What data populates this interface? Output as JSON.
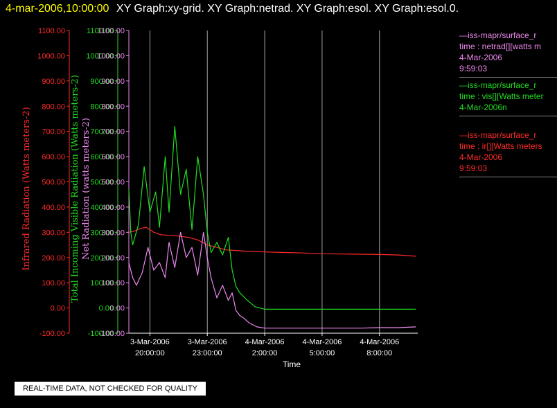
{
  "header": {
    "timestamp": "4-mar-2006,10:00:00",
    "titles": "XY Graph:xy-grid.  XY Graph:netrad.  XY Graph:esol.  XY Graph:esol.0."
  },
  "colors": {
    "red": "#ff2a2a",
    "green": "#22dd22",
    "violet": "#ee88ee",
    "grid": "#cccccc",
    "white": "#ffffff"
  },
  "legend": [
    {
      "lines": [
        "—iss-mapr/surface_r",
        "time : netrad[][watts m",
        "4-Mar-2006",
        "9:59:03"
      ],
      "color": "#ee88ee"
    },
    {
      "lines": [
        "—iss-mapr/surface_r",
        "time : vis[][Watts meter",
        "4-Mar-2006n"
      ],
      "color": "#22dd22"
    },
    {
      "lines": [
        "—iss-mapr/surface_r",
        "time : ir[][Watts meters",
        "4-Mar-2006",
        "9:59:03"
      ],
      "color": "#ff2a2a"
    }
  ],
  "quality_note": "REAL-TIME DATA, NOT CHECKED FOR QUALITY",
  "chart_data": {
    "type": "line",
    "xlabel": "Time",
    "x_ticks": [
      {
        "hours": 0,
        "label1": "3-Mar-2006",
        "label2": "20:00:00"
      },
      {
        "hours": 3,
        "label1": "3-Mar-2006",
        "label2": "23:00:00"
      },
      {
        "hours": 6,
        "label1": "4-Mar-2006",
        "label2": "2:00:00"
      },
      {
        "hours": 9,
        "label1": "4-Mar-2006",
        "label2": "5:00:00"
      },
      {
        "hours": 12,
        "label1": "4-Mar-2006",
        "label2": "8:00:00"
      }
    ],
    "xlim": [
      -1.1,
      14.0
    ],
    "ylim": [
      -100,
      1100
    ],
    "y_ticks": [
      -100,
      0,
      100,
      200,
      300,
      400,
      500,
      600,
      700,
      800,
      900,
      1000,
      1100
    ],
    "y_tick_labels": [
      "-100.00",
      "0.00",
      "100.00",
      "200.00",
      "300.00",
      "400.00",
      "500.00",
      "600.00",
      "700.00",
      "800.00",
      "900.00",
      "1000.00",
      "1100.00"
    ],
    "axes": [
      {
        "label": "Infrared Radiation (Watts meters-2)",
        "color": "#ff2a2a"
      },
      {
        "label": "Total Incoming Visible Radiation (Watts meters-2)",
        "color": "#22dd22"
      },
      {
        "label": "Net Radiation (watts meters-2)",
        "color": "#ee88ee"
      }
    ],
    "series": [
      {
        "name": "ir",
        "color": "#ff2a2a",
        "x": [
          -1.1,
          -0.8,
          -0.5,
          -0.2,
          0.2,
          0.6,
          1.0,
          1.5,
          2.0,
          2.5,
          3.0,
          3.5,
          4.0,
          4.5,
          5.0,
          6.0,
          7.0,
          8.0,
          9.0,
          10.0,
          11.0,
          12.0,
          13.0,
          13.9
        ],
        "y": [
          300,
          305,
          315,
          320,
          300,
          290,
          288,
          285,
          280,
          270,
          250,
          240,
          230,
          228,
          225,
          222,
          220,
          218,
          215,
          214,
          213,
          212,
          210,
          205
        ]
      },
      {
        "name": "vis",
        "color": "#22dd22",
        "x": [
          -1.1,
          -1.0,
          -0.9,
          -0.6,
          -0.3,
          0.0,
          0.3,
          0.5,
          0.8,
          1.0,
          1.3,
          1.6,
          1.9,
          2.2,
          2.5,
          2.8,
          3.0,
          3.2,
          3.5,
          3.8,
          4.1,
          4.3,
          4.5,
          4.7,
          4.9,
          5.1,
          5.5,
          6.0,
          7.0,
          8.0,
          9.0,
          10.0,
          11.0,
          12.0,
          13.0,
          13.9
        ],
        "y": [
          470,
          300,
          250,
          330,
          560,
          380,
          460,
          320,
          600,
          380,
          720,
          450,
          550,
          310,
          600,
          450,
          300,
          220,
          260,
          210,
          280,
          150,
          85,
          60,
          45,
          30,
          5,
          -5,
          -5,
          -5,
          -5,
          -5,
          -5,
          -5,
          -5,
          -5
        ]
      },
      {
        "name": "netrad",
        "color": "#ee88ee",
        "x": [
          -1.1,
          -0.9,
          -0.7,
          -0.4,
          -0.1,
          0.2,
          0.5,
          0.8,
          1.0,
          1.3,
          1.6,
          1.9,
          2.2,
          2.5,
          2.8,
          3.0,
          3.2,
          3.5,
          3.8,
          4.1,
          4.3,
          4.5,
          4.7,
          4.9,
          5.2,
          5.6,
          6.0,
          7.0,
          8.0,
          9.0,
          10.0,
          11.0,
          12.0,
          13.0,
          13.9
        ],
        "y": [
          180,
          120,
          90,
          140,
          240,
          150,
          180,
          120,
          260,
          160,
          300,
          200,
          240,
          130,
          300,
          200,
          120,
          40,
          90,
          30,
          60,
          -10,
          -30,
          -40,
          -60,
          -75,
          -80,
          -80,
          -80,
          -80,
          -80,
          -80,
          -78,
          -78,
          -75
        ]
      }
    ]
  }
}
